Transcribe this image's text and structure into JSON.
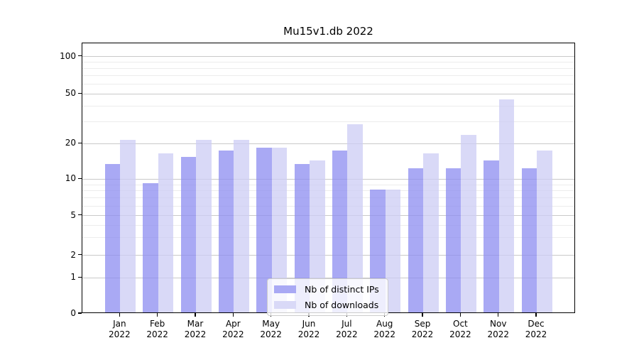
{
  "title": "Mu15v1.db 2022",
  "chart_data": {
    "type": "bar",
    "title": "Mu15v1.db 2022",
    "xlabel": "",
    "ylabel": "",
    "yscale": "symlog",
    "ylim": [
      0,
      128
    ],
    "yticks": [
      0,
      1,
      2,
      5,
      10,
      20,
      50,
      100
    ],
    "grid": true,
    "legend_position": "lower center (inside plot)",
    "x_year": "2022",
    "categories": [
      "Jan 2022",
      "Feb 2022",
      "Mar 2022",
      "Apr 2022",
      "May 2022",
      "Jun 2022",
      "Jul 2022",
      "Aug 2022",
      "Sep 2022",
      "Oct 2022",
      "Nov 2022",
      "Dec 2022"
    ],
    "months": [
      "Jan",
      "Feb",
      "Mar",
      "Apr",
      "May",
      "Jun",
      "Jul",
      "Aug",
      "Sep",
      "Oct",
      "Nov",
      "Dec"
    ],
    "series": [
      {
        "name": "Nb of distinct IPs",
        "color": "#a9a9f4",
        "values": [
          13,
          9,
          15,
          17,
          18,
          13,
          17,
          8,
          12,
          12,
          14,
          12
        ]
      },
      {
        "name": "Nb of downloads",
        "color": "#d9d9f7",
        "values": [
          21,
          16,
          21,
          21,
          18,
          14,
          28,
          8,
          16,
          23,
          44,
          17
        ]
      }
    ]
  },
  "colors": {
    "grid_major": "#c9c9c9",
    "grid_minor": "#ececec",
    "spine": "#000000",
    "background": "#ffffff"
  }
}
